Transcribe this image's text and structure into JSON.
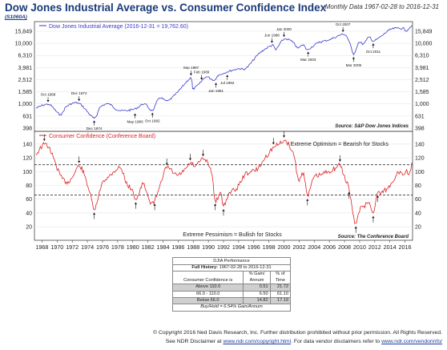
{
  "header": {
    "title": "Dow Jones Industrial Average vs. Consumer Confidence Index",
    "code": "(S1060A)",
    "date_range": "Monthly Data 1967-02-28 to 2016-12-31"
  },
  "chart_data": [
    {
      "type": "line",
      "title": "Dow Jones Industrial Average",
      "series": [
        {
          "name": "Dow Jones Industrial Average (2016-12-31 = 19,762.60)",
          "color": "#3a3acc",
          "x": [
            1967.2,
            1968.9,
            1970.4,
            1971.3,
            1972.9,
            1974.9,
            1975.6,
            1976.8,
            1978.2,
            1980.2,
            1981.5,
            1982.6,
            1983.5,
            1984.6,
            1985.9,
            1987.7,
            1987.9,
            1988.8,
            1989.7,
            1990.8,
            1991.2,
            1992.4,
            1993.9,
            1995.0,
            1996.5,
            1997.6,
            1998.6,
            1998.9,
            2000.0,
            2001.2,
            2001.8,
            2002.6,
            2002.9,
            2003.2,
            2004.5,
            2006.0,
            2007.8,
            2008.4,
            2008.9,
            2009.2,
            2009.9,
            2010.5,
            2011.3,
            2011.8,
            2012.9,
            2013.9,
            2014.9,
            2015.9,
            2016.1,
            2016.9
          ],
          "values": [
            850,
            980,
            670,
            920,
            1020,
            580,
            860,
            1000,
            780,
            820,
            1000,
            780,
            1250,
            1120,
            1550,
            2700,
            1780,
            2150,
            2800,
            2450,
            2900,
            3350,
            3800,
            3900,
            6400,
            8200,
            9300,
            7800,
            11700,
            10400,
            8400,
            9500,
            8000,
            7950,
            10200,
            11500,
            14100,
            12300,
            8500,
            6500,
            10400,
            9800,
            12800,
            10900,
            13200,
            16500,
            17800,
            17400,
            16000,
            19762.6
          ]
        }
      ],
      "annotations": [
        "Oct 1968",
        "Dec 1972",
        "Dec 1974",
        "May 1980",
        "Oct 1982",
        "Sep 1987",
        "Feb 1989",
        "Jan 1991",
        "Jul 1992",
        "Jun 1998",
        "Jan 2000",
        "Mar 2003",
        "Oct 2007",
        "Mar 2009",
        "Oct 2011"
      ],
      "yticks": [
        "15,849",
        "10,000",
        "6,310",
        "3,981",
        "2,512",
        "1,585",
        "1,000",
        "631",
        "398"
      ],
      "source": "Source:  S&P Dow Jones Indices"
    },
    {
      "type": "line",
      "title": "Consumer Confidence",
      "series": [
        {
          "name": "Consumer Confidence (Conference Board)",
          "color": "#dd2222",
          "x": [
            1967.2,
            1968.3,
            1968.9,
            1969.5,
            1970.4,
            1971.2,
            1971.9,
            1972.9,
            1973.6,
            1974.3,
            1974.9,
            1975.4,
            1976.0,
            1976.8,
            1977.5,
            1978.4,
            1979.3,
            1979.9,
            1980.4,
            1980.9,
            1981.4,
            1982.2,
            1982.9,
            1983.7,
            1984.5,
            1985.8,
            1986.7,
            1987.6,
            1988.3,
            1989.3,
            1990.0,
            1990.5,
            1990.9,
            1991.6,
            1992.0,
            1992.8,
            1993.7,
            1994.8,
            1995.7,
            1996.6,
            1997.5,
            1998.6,
            1999.4,
            2000.0,
            2000.7,
            2001.4,
            2001.9,
            2002.6,
            2003.1,
            2003.9,
            2004.8,
            2005.8,
            2006.8,
            2007.4,
            2007.9,
            2008.6,
            2009.1,
            2009.5,
            2010.2,
            2010.6,
            2011.3,
            2011.8,
            2012.4,
            2012.9,
            2013.6,
            2014.4,
            2015.0,
            2015.7,
            2016.1,
            2016.6,
            2016.9
          ],
          "values": [
            125,
            140,
            135,
            120,
            95,
            85,
            90,
            108,
            95,
            70,
            45,
            60,
            85,
            92,
            100,
            105,
            80,
            75,
            60,
            70,
            82,
            58,
            58,
            85,
            105,
            95,
            100,
            112,
            108,
            118,
            110,
            95,
            58,
            70,
            50,
            70,
            75,
            95,
            100,
            105,
            120,
            135,
            140,
            145,
            138,
            120,
            88,
            98,
            65,
            90,
            95,
            100,
            105,
            110,
            95,
            75,
            40,
            25,
            50,
            50,
            55,
            40,
            70,
            70,
            75,
            85,
            100,
            95,
            100,
            98,
            113
          ]
        }
      ],
      "thresholds": [
        110,
        66
      ],
      "yticks": [
        "140",
        "120",
        "100",
        "80",
        "60",
        "40",
        "20"
      ],
      "xticks": [
        "1968",
        "1970",
        "1972",
        "1974",
        "1976",
        "1978",
        "1980",
        "1982",
        "1984",
        "1986",
        "1988",
        "1990",
        "1992",
        "1994",
        "1996",
        "1998",
        "2000",
        "2002",
        "2004",
        "2006",
        "2008",
        "2010",
        "2012",
        "2014",
        "2016"
      ],
      "annotations": [
        "Extreme Optimism = Bearish for Stocks",
        "Extreme Pessimism = Bullish for Stocks"
      ],
      "source": "Source:  The Conference Board"
    }
  ],
  "perf_table": {
    "caption": "DJIA Performance",
    "history_label": "Full History:",
    "history_range": "1967-02-28 to 2016-12-31",
    "col1": "Consumer Confidence is",
    "col2a": "% Gain/",
    "col2b": "Annum",
    "col3a": "% of",
    "col3b": "Time",
    "rows": [
      {
        "label": "Above 110.0",
        "gain": "0.51",
        "time": "21.72"
      },
      {
        "label": "66.0 - 110.0",
        "gain": "6.50",
        "time": "61.10"
      },
      {
        "label": "Below 66.0",
        "gain": "14.82",
        "time": "17.19"
      }
    ],
    "buyhold": "Buy/Hold = 6.54% Gain/Annum"
  },
  "footer": {
    "copyright": "© Copyright 2016 Ned Davis Research, Inc. Further distribution prohibited without prior permission. All Rights Reserved.",
    "disc_a": "See NDR Disclaimer at ",
    "link_a": "www.ndr.com/copyright.html",
    "disc_b": ". For data vendor disclaimers refer to ",
    "link_b": "www.ndr.com/vendorinfo/"
  }
}
